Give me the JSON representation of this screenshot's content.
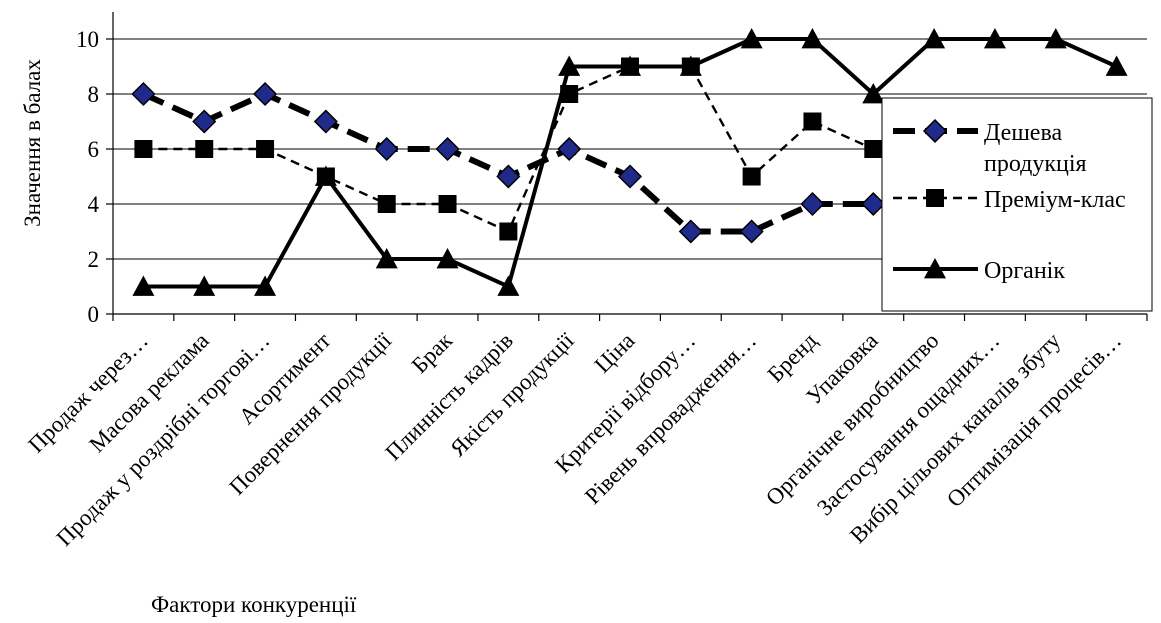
{
  "chart_data": {
    "type": "line",
    "title": "",
    "xlabel": "Фактори конкуренції",
    "ylabel": "Значення в балах",
    "ylim": [
      0,
      10
    ],
    "yticks": [
      0,
      2,
      4,
      6,
      8,
      10
    ],
    "grid": true,
    "legend_position": "right",
    "categories": [
      "Продаж через…",
      "Масова реклама",
      "Продаж у роздрібні торгові…",
      "Асортимент",
      "Повернення продукції",
      "Брак",
      "Плинність кадрів",
      "Якість продукції",
      "Ціна",
      "Критерії відбору…",
      "Рівень впровадження…",
      "Бренд",
      "Упаковка",
      "Органічне виробництво",
      "Застосування ощадних…",
      "Вибір цільових каналів збуту",
      "Оптимізація процесів…"
    ],
    "series": [
      {
        "name": "Дешева продукція",
        "marker": "diamond",
        "line": "bold-dash",
        "values": [
          8,
          7,
          8,
          7,
          6,
          6,
          5,
          6,
          5,
          3,
          3,
          4,
          4,
          null,
          null,
          null,
          null
        ]
      },
      {
        "name": "Преміум-клас",
        "marker": "square",
        "line": "dash",
        "values": [
          6,
          6,
          6,
          5,
          4,
          4,
          3,
          8,
          9,
          9,
          5,
          7,
          6,
          null,
          null,
          null,
          null
        ]
      },
      {
        "name": "Органік",
        "marker": "triangle",
        "line": "solid",
        "values": [
          1,
          1,
          1,
          5,
          2,
          2,
          1,
          9,
          9,
          9,
          10,
          10,
          8,
          10,
          10,
          10,
          9
        ]
      }
    ],
    "legend_labels": [
      "Дешева",
      "продукція",
      "Преміум-клас",
      "Органік"
    ],
    "colors": {
      "line": "#000000",
      "diamond_fill": "#1f2a8a",
      "grid": "#000000"
    }
  }
}
